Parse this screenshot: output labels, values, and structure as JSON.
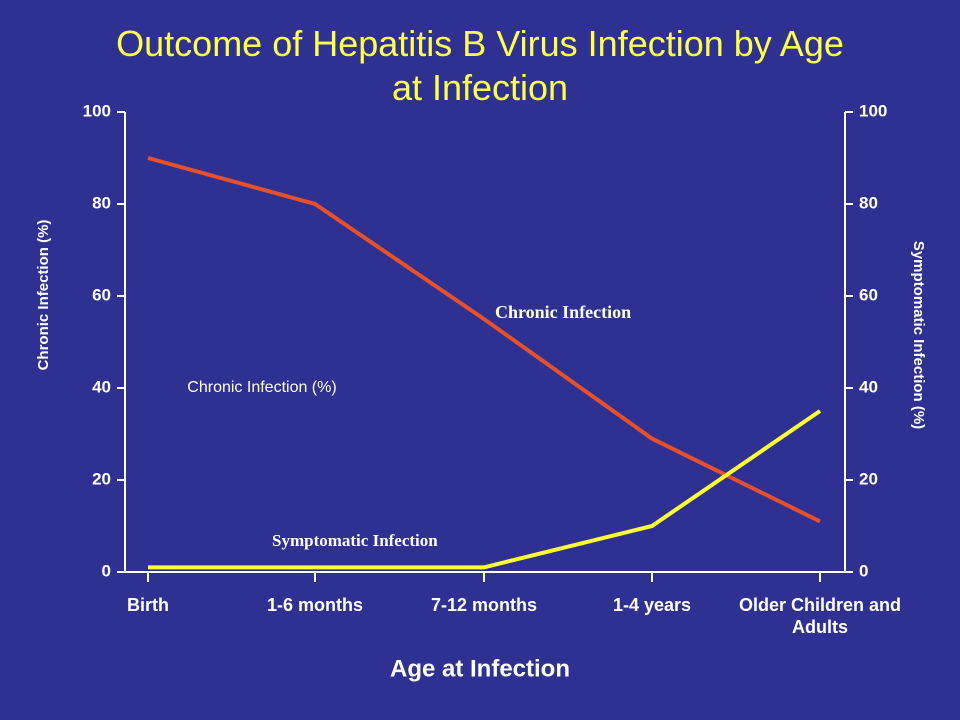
{
  "chart_data": {
    "type": "line",
    "title": "Outcome of Hepatitis B Virus Infection by Age at Infection",
    "x_label": "Age at Infection",
    "y_label": "Chronic Infection (%)",
    "y2_label": "Symptomatic Infection (%)",
    "categories": [
      "Birth",
      "1-6 months",
      "7-12 months",
      "1-4 years",
      "Older Children and Adults"
    ],
    "series": [
      {
        "name": "Chronic Infection",
        "color": "#e8502a",
        "values": [
          90,
          80,
          55,
          29,
          11
        ]
      },
      {
        "name": "Symptomatic Infection",
        "color": "#ffff33",
        "values": [
          1,
          1,
          1,
          10,
          35
        ],
        "axis": "y2"
      }
    ],
    "annotations": [
      "Chronic Infection (%)"
    ],
    "ylim": [
      0,
      100
    ],
    "yticks": [
      0,
      20,
      40,
      60,
      80,
      100
    ],
    "y2lim": [
      0,
      100
    ],
    "y2ticks": [
      0,
      20,
      40,
      60,
      80,
      100
    ]
  }
}
